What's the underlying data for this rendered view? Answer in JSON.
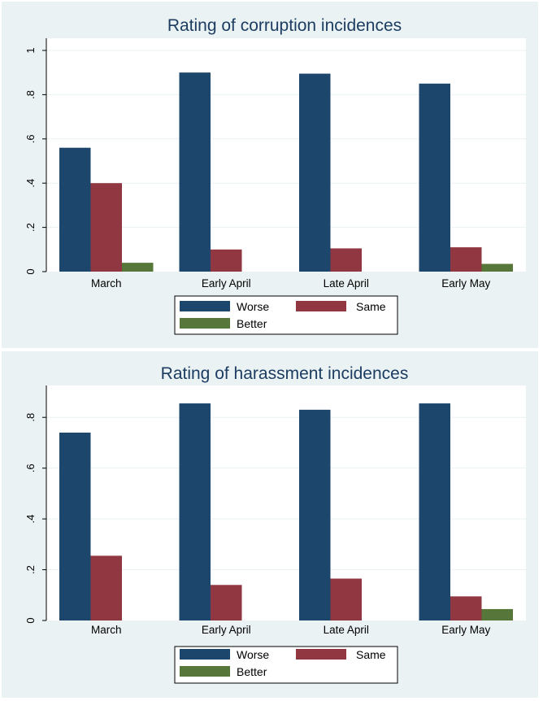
{
  "colors": {
    "panel_bg": "#eaf2f3",
    "plot_bg": "#ffffff",
    "grid": "#eaf2f3",
    "title": "#1c3d61",
    "worse": "#1c466c",
    "same": "#903741",
    "better": "#56763a"
  },
  "chart_data": [
    {
      "type": "bar",
      "title": "Rating of corruption incidences",
      "xlabel": "",
      "ylabel": "",
      "ylim": [
        0,
        1
      ],
      "yticks": [
        0,
        0.2,
        0.4,
        0.6,
        0.8,
        1
      ],
      "ytick_labels": [
        "0",
        ".2",
        ".4",
        ".6",
        ".8",
        "1"
      ],
      "grid": true,
      "legend_position": "bottom",
      "categories": [
        "March",
        "Early April",
        "Late April",
        "Early May"
      ],
      "series": [
        {
          "name": "Worse",
          "color": "#1c466c",
          "values": [
            0.56,
            0.9,
            0.895,
            0.85
          ]
        },
        {
          "name": "Same",
          "color": "#903741",
          "values": [
            0.4,
            0.1,
            0.105,
            0.11
          ]
        },
        {
          "name": "Better",
          "color": "#56763a",
          "values": [
            0.04,
            0,
            0,
            0.035
          ]
        }
      ]
    },
    {
      "type": "bar",
      "title": "Rating of harassment incidences",
      "xlabel": "",
      "ylabel": "",
      "ylim": [
        0,
        0.9
      ],
      "yticks": [
        0,
        0.2,
        0.4,
        0.6,
        0.8
      ],
      "ytick_labels": [
        "0",
        ".2",
        ".4",
        ".6",
        ".8"
      ],
      "grid": true,
      "legend_position": "bottom",
      "categories": [
        "March",
        "Early April",
        "Late April",
        "Early May"
      ],
      "series": [
        {
          "name": "Worse",
          "color": "#1c466c",
          "values": [
            0.74,
            0.855,
            0.83,
            0.855
          ]
        },
        {
          "name": "Same",
          "color": "#903741",
          "values": [
            0.255,
            0.14,
            0.165,
            0.095
          ]
        },
        {
          "name": "Better",
          "color": "#56763a",
          "values": [
            0,
            0,
            0,
            0.045
          ]
        }
      ]
    }
  ]
}
